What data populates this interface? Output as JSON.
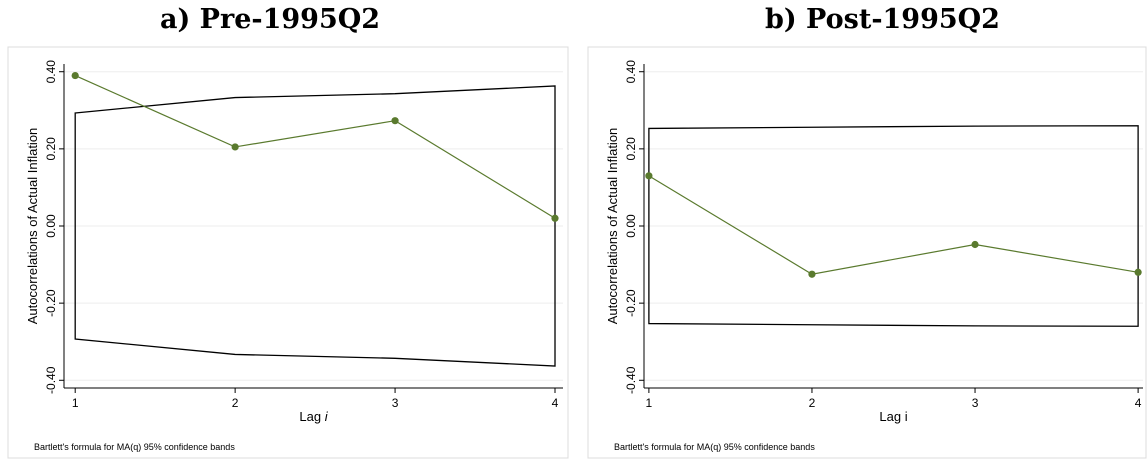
{
  "chart_data": [
    {
      "type": "line",
      "title": "a) Pre-1995Q2",
      "xlabel": "Lag ",
      "xlabel_italic": "i",
      "ylabel": "Autocorrelations of Actual Inflation",
      "note": "Bartlett's formula for MA(q) 95% confidence bands",
      "x": [
        1,
        2,
        3,
        4
      ],
      "xticks": [
        "1",
        "2",
        "3",
        "4"
      ],
      "yticks": [
        "-0.40",
        "-0.20",
        "0.00",
        "0.20",
        "0.40"
      ],
      "ytick_values": [
        -0.4,
        -0.2,
        0.0,
        0.2,
        0.4
      ],
      "ylim": [
        -0.42,
        0.42
      ],
      "xlim": [
        0.93,
        4.05
      ],
      "series": [
        {
          "values": [
            0.39,
            0.205,
            0.273,
            0.02
          ],
          "color": "#5a7a2e"
        }
      ],
      "band_upper": [
        0.293,
        0.333,
        0.343,
        0.363
      ],
      "band_lower": [
        -0.293,
        -0.333,
        -0.343,
        -0.363
      ],
      "grid": true
    },
    {
      "type": "line",
      "title": "b) Post-1995Q2",
      "xlabel": "Lag i",
      "xlabel_italic": "",
      "ylabel": "Autocorrelations of Actual Inflation",
      "note": "Bartlett's formula for MA(q) 95% confidence bands",
      "x": [
        1,
        2,
        3,
        4
      ],
      "xticks": [
        "1",
        "2",
        "3",
        "4"
      ],
      "yticks": [
        "-0.40",
        "-0.20",
        "0.00",
        "0.20",
        "0.40"
      ],
      "ytick_values": [
        -0.4,
        -0.2,
        0.0,
        0.2,
        0.4
      ],
      "ylim": [
        -0.42,
        0.42
      ],
      "xlim": [
        0.97,
        4.03
      ],
      "series": [
        {
          "values": [
            0.13,
            -0.125,
            -0.048,
            -0.12
          ],
          "color": "#5a7a2e"
        }
      ],
      "band_upper": [
        0.253,
        0.256,
        0.259,
        0.26
      ],
      "band_lower": [
        -0.253,
        -0.256,
        -0.259,
        -0.26
      ],
      "grid": true
    }
  ]
}
